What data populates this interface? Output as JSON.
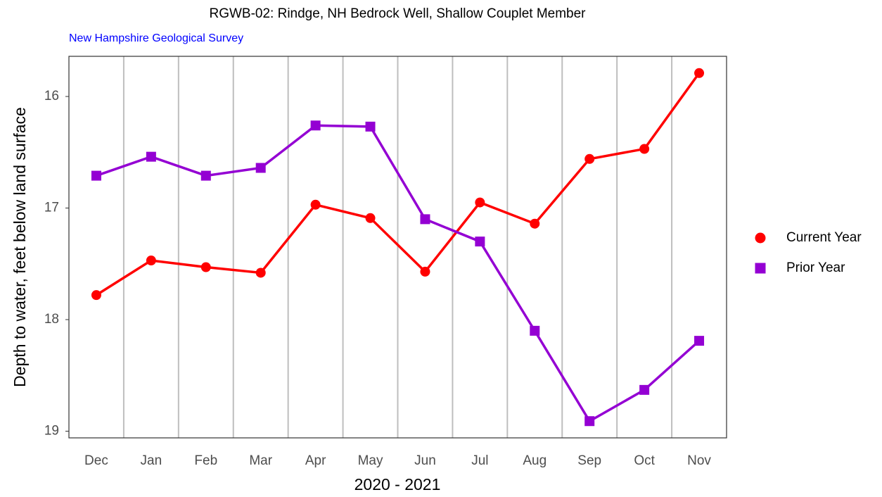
{
  "chart_data": {
    "type": "line",
    "title": "RGWB-02: Rindge, NH Bedrock Well, Shallow Couplet Member",
    "subtitle": "New Hampshire Geological Survey",
    "x_label": "2020 - 2021",
    "y_label": "Depth to water, feet below land surface",
    "categories": [
      "Dec",
      "Jan",
      "Feb",
      "Mar",
      "Apr",
      "May",
      "Jun",
      "Jul",
      "Aug",
      "Sep",
      "Oct",
      "Nov"
    ],
    "series": [
      {
        "name": "Current Year",
        "color": "#ff0000",
        "marker": "circle",
        "values": [
          17.78,
          17.47,
          17.53,
          17.58,
          16.97,
          17.09,
          17.57,
          16.95,
          17.14,
          16.56,
          16.47,
          15.79
        ]
      },
      {
        "name": "Prior Year",
        "color": "#9400d3",
        "marker": "square",
        "values": [
          16.71,
          16.54,
          16.71,
          16.64,
          16.26,
          16.27,
          17.1,
          17.3,
          18.1,
          18.91,
          18.63,
          18.19
        ]
      }
    ],
    "ylim": [
      15.64,
      19.06
    ],
    "yticks": [
      16,
      17,
      18,
      19
    ],
    "y_reversed": true,
    "legend": "right"
  }
}
